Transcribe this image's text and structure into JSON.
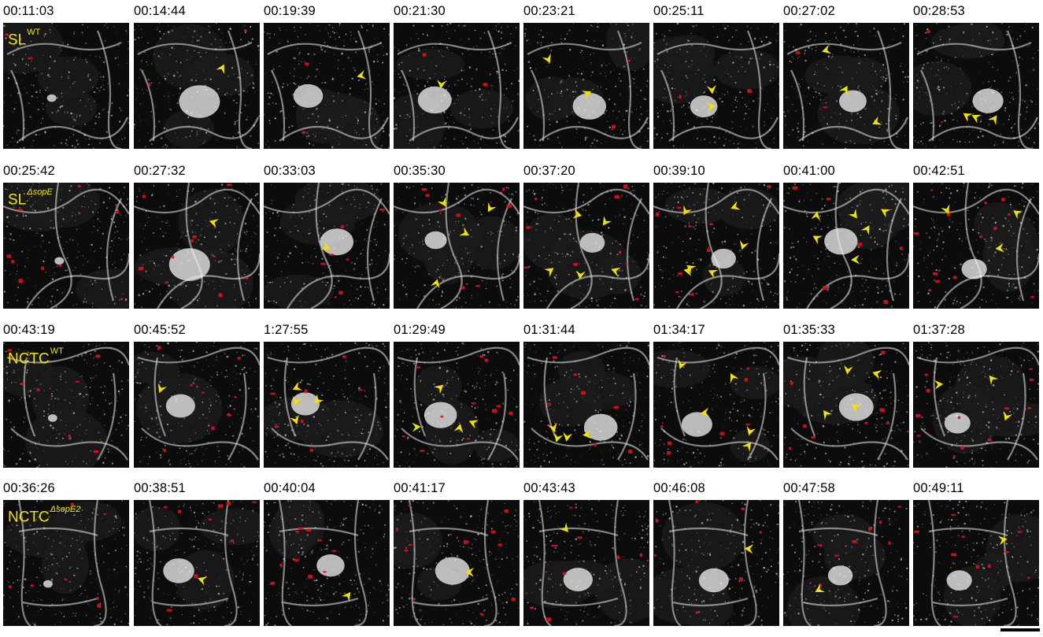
{
  "figure": {
    "rows": [
      {
        "strain_label": {
          "base": "SL",
          "sup": "WT",
          "sup_italic": false
        },
        "timestamps": [
          "00:11:03",
          "00:14:44",
          "00:19:39",
          "00:21:30",
          "00:23:21",
          "00:25:11",
          "00:27:02",
          "00:28:53"
        ],
        "arrows_per_frame": [
          0,
          1,
          1,
          1,
          2,
          2,
          3,
          3
        ]
      },
      {
        "strain_label": {
          "base": "SL",
          "sup": "ΔsopE",
          "sup_italic": true
        },
        "timestamps": [
          "00:25:42",
          "00:27:32",
          "00:33:03",
          "00:35:30",
          "00:37:20",
          "00:39:10",
          "00:41:00",
          "00:42:51"
        ],
        "arrows_per_frame": [
          0,
          1,
          1,
          4,
          5,
          6,
          6,
          3
        ]
      },
      {
        "strain_label": {
          "base": "NCTC",
          "sup": "WT",
          "sup_italic": false
        },
        "timestamps": [
          "00:43:19",
          "00:45:52",
          "1:27:55",
          "01:29:49",
          "01:31:44",
          "01:34:17",
          "01:35:33",
          "01:37:28"
        ],
        "arrows_per_frame": [
          0,
          1,
          4,
          4,
          4,
          5,
          4,
          3
        ]
      },
      {
        "strain_label": {
          "base": "NCTC",
          "sup": "ΔsopE2",
          "sup_italic": true
        },
        "timestamps": [
          "00:36:26",
          "00:38:51",
          "00:40:04",
          "00:41:17",
          "00:43:43",
          "00:46:08",
          "00:47:58",
          "00:49:11"
        ],
        "arrows_per_frame": [
          0,
          1,
          1,
          1,
          1,
          1,
          1,
          1
        ]
      }
    ],
    "colors": {
      "actin": "#e8e8e8",
      "bacteria": "#e0101c",
      "arrowhead": "#f2e300",
      "label": "#f2e300",
      "background": "#0c0c0c"
    },
    "scale_bar": "unlabeled black scale bar"
  }
}
